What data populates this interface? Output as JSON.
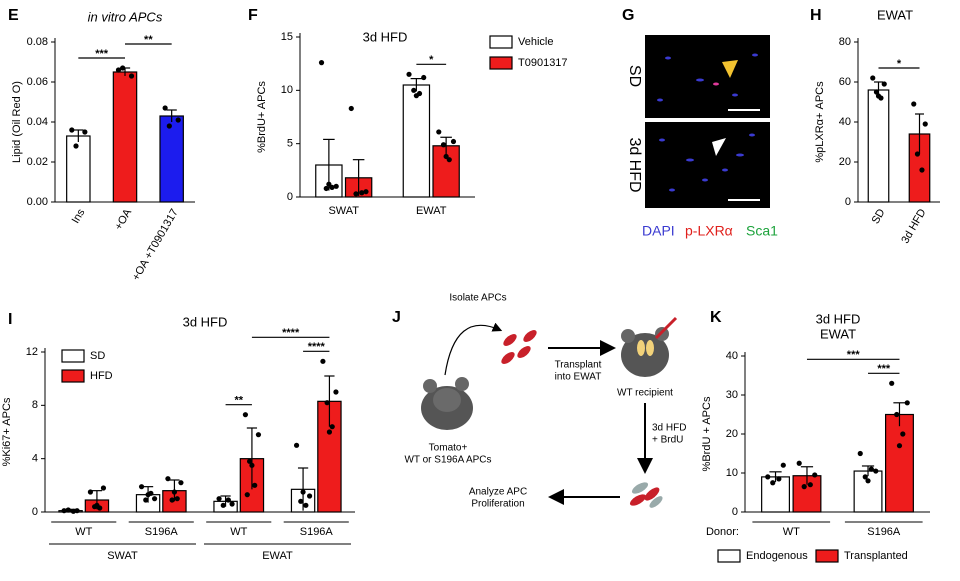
{
  "panel_labels": [
    "E",
    "F",
    "G",
    "H",
    "I",
    "J",
    "K"
  ],
  "chart_data": [
    {
      "type": "bar",
      "title": "in vitro APCs",
      "ylabel": "Lipid (Oil Red O)",
      "categories": [
        "Ins",
        "+OA",
        "+OA +T0901317"
      ],
      "values": [
        0.033,
        0.065,
        0.043
      ],
      "errors": [
        0.003,
        0.002,
        0.003
      ],
      "points": [
        [
          0.036,
          0.035,
          0.028
        ],
        [
          0.066,
          0.063,
          0.067
        ],
        [
          0.047,
          0.041,
          0.038
        ]
      ],
      "colors": [
        "#ffffff",
        "#ee1c1c",
        "#1c1cee"
      ],
      "ylim": [
        0,
        0.08
      ],
      "yticks": [
        {
          "value": 0,
          "label": "0.00"
        },
        {
          "value": 0.02,
          "label": "0.02"
        },
        {
          "value": 0.04,
          "label": "0.04"
        },
        {
          "value": 0.06,
          "label": "0.06"
        },
        {
          "value": 0.08,
          "label": "0.08"
        }
      ],
      "annotations": [
        {
          "label": "***",
          "bars": [
            0,
            1
          ]
        },
        {
          "label": "**",
          "bars": [
            1,
            2
          ]
        }
      ]
    },
    {
      "type": "bar",
      "title": "3d HFD",
      "ylabel": "%BrdU+ APCs",
      "categories": [
        "SWAT",
        "EWAT"
      ],
      "series": [
        {
          "name": "Vehicle",
          "color": "#ffffff",
          "values": [
            3.0,
            10.5
          ],
          "errors": [
            2.4,
            0.6
          ],
          "points": [
            [
              12.6,
              1.0,
              0.8,
              0.9,
              1.2
            ],
            [
              11.5,
              11.2,
              10.0,
              9.7,
              9.5
            ]
          ]
        },
        {
          "name": "T0901317",
          "color": "#ee1c1c",
          "values": [
            1.8,
            4.8
          ],
          "errors": [
            1.7,
            0.8
          ],
          "points": [
            [
              8.3,
              0.5,
              0.3,
              0.4
            ],
            [
              6.1,
              5.2,
              4.9,
              3.5,
              3.8
            ]
          ]
        }
      ],
      "ylim": [
        0,
        15
      ],
      "yticks": [
        0,
        5,
        10,
        15
      ],
      "annotations": [
        {
          "label": "*",
          "bars": [
            2,
            3
          ]
        }
      ]
    },
    {
      "type": "bar",
      "title": "EWAT",
      "ylabel": "%pLXRα+ APCs",
      "categories": [
        "SD",
        "3d HFD"
      ],
      "values": [
        56,
        34
      ],
      "errors": [
        4,
        10
      ],
      "points": [
        [
          62,
          59,
          55,
          52,
          53
        ],
        [
          49,
          39,
          24,
          16
        ]
      ],
      "colors": [
        "#ffffff",
        "#ee1c1c"
      ],
      "ylim": [
        0,
        80
      ],
      "yticks": [
        0,
        20,
        40,
        60,
        80
      ],
      "annotations": [
        {
          "label": "*",
          "bars": [
            0,
            1
          ]
        }
      ]
    },
    {
      "type": "bar",
      "title": "3d HFD",
      "ylabel": "%Ki67+ APCs",
      "categories": [
        "WT",
        "S196A",
        "WT",
        "S196A"
      ],
      "groups": [
        "SWAT",
        "EWAT"
      ],
      "series": [
        {
          "name": "SD",
          "color": "#ffffff",
          "values": [
            0.1,
            1.3,
            0.8,
            1.7
          ],
          "errors": [
            0.1,
            0.6,
            0.4,
            1.6
          ],
          "points": [
            [
              0.1,
              0.1,
              0.15,
              0.05
            ],
            [
              1.9,
              1.0,
              0.9,
              1.4,
              1.3
            ],
            [
              1.0,
              0.6,
              0.5,
              0.9
            ],
            [
              5.0,
              1.2,
              0.8,
              0.5,
              1.5
            ]
          ]
        },
        {
          "name": "HFD",
          "color": "#ee1c1c",
          "values": [
            0.9,
            1.6,
            4.0,
            8.3
          ],
          "errors": [
            0.7,
            0.8,
            2.3,
            1.9
          ],
          "points": [
            [
              1.5,
              1.8,
              0.4,
              0.3,
              0.5
            ],
            [
              2.5,
              2.2,
              0.9,
              1.0,
              1.5
            ],
            [
              7.3,
              5.8,
              3.8,
              2.0,
              3.5,
              1.3
            ],
            [
              11.3,
              9.0,
              8.2,
              6.4,
              6.0
            ]
          ]
        }
      ],
      "ylim": [
        0,
        12
      ],
      "yticks": [
        0,
        4,
        8,
        12
      ],
      "annotations": [
        {
          "label": "**",
          "bars": [
            4,
            5
          ]
        },
        {
          "label": "****",
          "bars": [
            6,
            7
          ]
        },
        {
          "label": "****",
          "bars": [
            5,
            7
          ]
        }
      ]
    },
    {
      "type": "bar",
      "title": "3d HFD",
      "subtitle": "EWAT",
      "ylabel": "%BrdU + APCs",
      "x_prefix": "Donor:",
      "categories": [
        "WT",
        "S196A"
      ],
      "series": [
        {
          "name": "Endogenous",
          "color": "#ffffff",
          "values": [
            9.0,
            10.5
          ],
          "errors": [
            1.3,
            1.3
          ],
          "points": [
            [
              9.0,
              12.0,
              7.5,
              8.5
            ],
            [
              15.0,
              10.5,
              9.0,
              11.0,
              8.0
            ]
          ]
        },
        {
          "name": "Transplanted",
          "color": "#ee1c1c",
          "values": [
            9.3,
            25
          ],
          "errors": [
            2.3,
            3
          ],
          "points": [
            [
              12.5,
              9.5,
              6.5,
              7.0
            ],
            [
              33,
              28,
              25,
              20,
              17
            ]
          ]
        }
      ],
      "ylim": [
        0,
        40
      ],
      "yticks": [
        0,
        10,
        20,
        30,
        40
      ],
      "annotations": [
        {
          "label": "***",
          "bars": [
            2,
            3
          ]
        },
        {
          "label": "***",
          "bars": [
            1,
            3
          ]
        }
      ]
    }
  ],
  "micrograph": {
    "rows": [
      "SD",
      "3d HFD"
    ],
    "stains": [
      "DAPI",
      "p-LXRα",
      "Sca1"
    ]
  },
  "diagram": {
    "labels": [
      "Isolate APCs",
      "Transplant",
      "into EWAT",
      "Tomato+",
      "WT or S196A APCs",
      "WT recipient",
      "3d HFD",
      "+ BrdU",
      "Analyze APC",
      "Proliferation"
    ]
  }
}
